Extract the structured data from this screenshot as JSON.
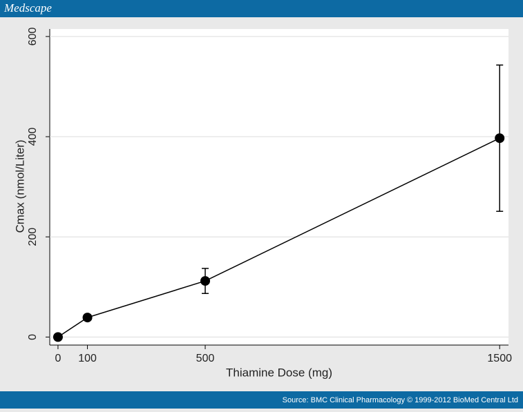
{
  "header": {
    "brand": "Medscape"
  },
  "footer": {
    "source": "Source: BMC Clinical Pharmacology © 1999-2012 BioMed Central Ltd"
  },
  "chart_data": {
    "type": "line",
    "x_label": "Thiamine Dose (mg)",
    "y_label": "Cmax (nmol/Liter)",
    "x": [
      0,
      100,
      500,
      1500
    ],
    "series": [
      {
        "color": "#000000",
        "values": [
          0,
          39,
          112,
          397
        ],
        "errors": [
          null,
          null,
          25,
          146
        ]
      }
    ],
    "xlim": [
      -28,
      1530
    ],
    "xticks": [
      0,
      100,
      500,
      1500
    ],
    "ylim": [
      -16,
      615
    ],
    "yticks": [
      0,
      200,
      400,
      600
    ],
    "grid": true
  }
}
